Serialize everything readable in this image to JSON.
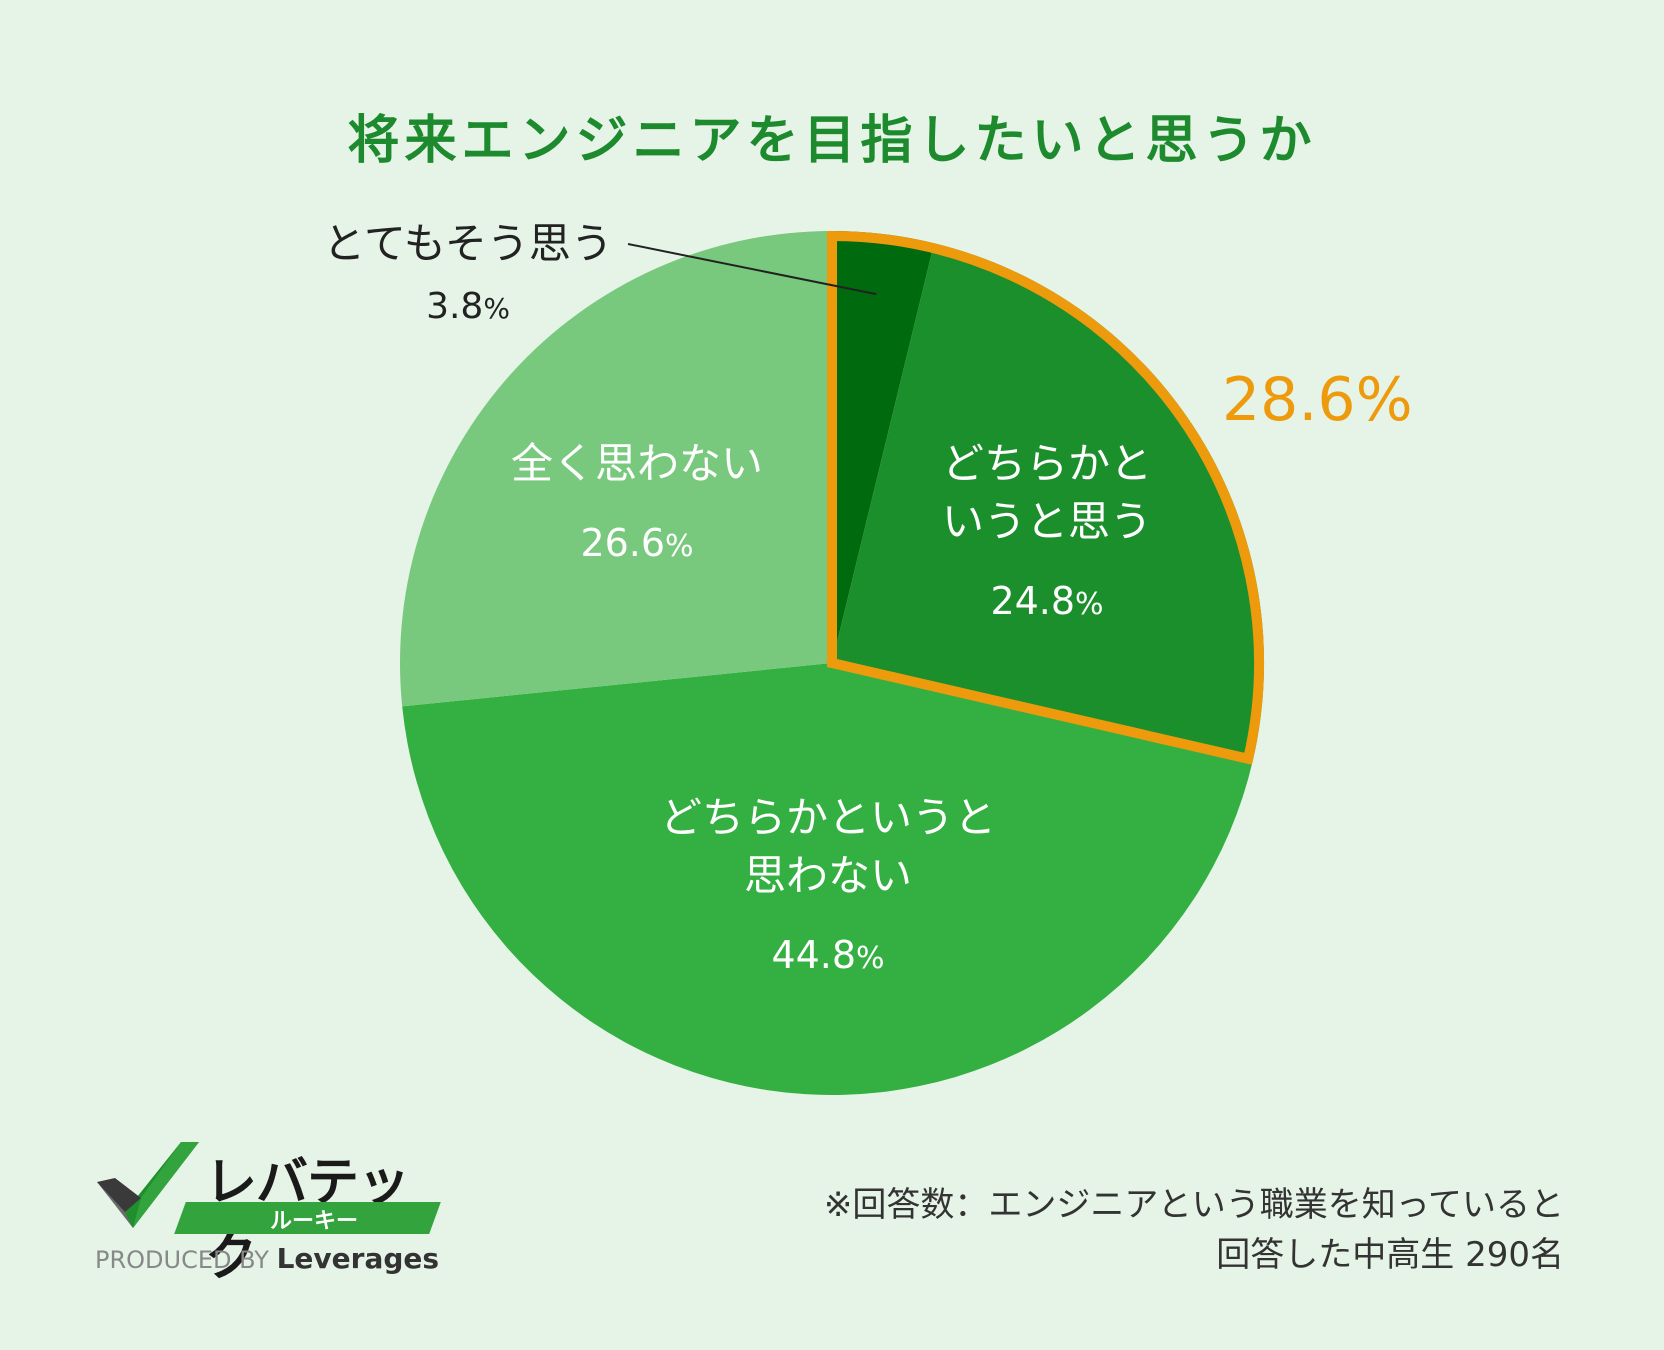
{
  "chart_data": {
    "type": "pie",
    "title": "将来エンジニアを目指したいと思うか",
    "start_angle_deg": 0,
    "direction": "clockwise",
    "slices": [
      {
        "label": "とてもそう思う",
        "value": 3.8,
        "value_text": "3.8",
        "color": "#006a0e"
      },
      {
        "label": "どちらかというと思う",
        "label_lines": [
          "どちらかと",
          "いうと思う"
        ],
        "value": 24.8,
        "value_text": "24.8",
        "color": "#1b8f2c"
      },
      {
        "label": "どちらかというと思わない",
        "label_lines": [
          "どちらかというと",
          "思わない"
        ],
        "value": 44.8,
        "value_text": "44.8",
        "color": "#33b041"
      },
      {
        "label": "全く思わない",
        "label_lines": [
          "全く思わない"
        ],
        "value": 26.6,
        "value_text": "26.6",
        "color": "#78c97d"
      }
    ],
    "percent_sign": "%",
    "highlight": {
      "value_text": "28.6%",
      "color": "#ee9a0d",
      "covers": [
        "とてもそう思う",
        "どちらかというと思う"
      ]
    }
  },
  "note": {
    "line1": "※回答数：エンジニアという職業を知っていると",
    "line2": "回答した中高生 290名"
  },
  "logo": {
    "brand": "レバテック",
    "sub": "ルーキー",
    "produced_by": "PRODUCED BY",
    "company": "Leverages"
  }
}
